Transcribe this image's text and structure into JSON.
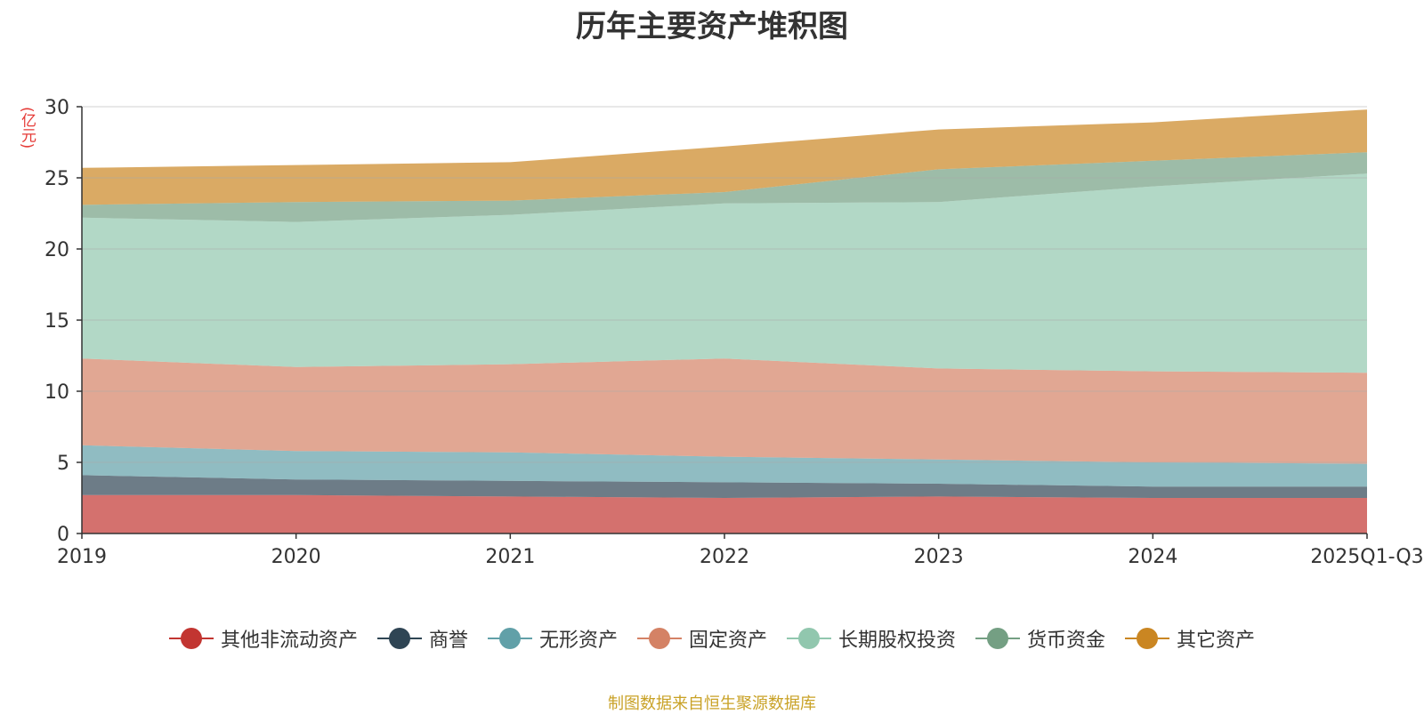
{
  "chart_data": {
    "type": "area",
    "stacked": true,
    "title": "历年主要资产堆积图",
    "ylabel": "(亿元)",
    "xlabel": "",
    "categories": [
      "2019",
      "2020",
      "2021",
      "2022",
      "2023",
      "2024",
      "2025Q1-Q3"
    ],
    "ylim": [
      0,
      30
    ],
    "yticks": [
      0,
      5,
      10,
      15,
      20,
      25,
      30
    ],
    "series": [
      {
        "name": "其他非流动资产",
        "color": "#c23531",
        "values": [
          2.7,
          2.7,
          2.6,
          2.5,
          2.6,
          2.5,
          2.5
        ]
      },
      {
        "name": "商誉",
        "color": "#2f4554",
        "values": [
          1.4,
          1.1,
          1.1,
          1.1,
          0.9,
          0.8,
          0.8
        ]
      },
      {
        "name": "无形资产",
        "color": "#61a0a8",
        "values": [
          2.1,
          2.0,
          2.0,
          1.8,
          1.7,
          1.7,
          1.6
        ]
      },
      {
        "name": "固定资产",
        "color": "#d48265",
        "values": [
          6.1,
          5.9,
          6.2,
          6.9,
          6.4,
          6.4,
          6.4
        ]
      },
      {
        "name": "长期股权投资",
        "color": "#91c7ae",
        "values": [
          9.9,
          10.2,
          10.5,
          10.9,
          11.7,
          13.0,
          14.0
        ]
      },
      {
        "name": "货币资金",
        "color": "#749f83",
        "values": [
          0.9,
          1.4,
          1.0,
          0.8,
          2.3,
          1.8,
          1.5
        ]
      },
      {
        "name": "其它资产",
        "color": "#ca8622",
        "values": [
          2.6,
          2.6,
          2.7,
          3.2,
          2.8,
          2.7,
          3.0
        ]
      }
    ]
  },
  "source_note": "制图数据来自恒生聚源数据库"
}
